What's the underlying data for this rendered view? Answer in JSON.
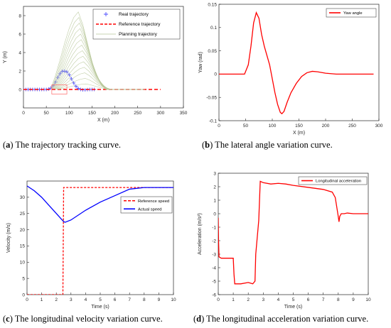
{
  "captions": [
    {
      "prefix": "(",
      "letter": "a",
      "text": ") The trajectory tracking curve."
    },
    {
      "prefix": "(",
      "letter": "b",
      "text": ") The lateral angle variation curve."
    },
    {
      "prefix": "(",
      "letter": "c",
      "text": ") The longitudinal velocity variation curve."
    },
    {
      "prefix": "(",
      "letter": "d",
      "text": ") The longitudinal acceleration variation curve."
    }
  ],
  "chart_data": [
    {
      "type": "line",
      "xlabel": "X (m)",
      "ylabel": "Y (m)",
      "xlim": [
        0,
        350
      ],
      "ylim": [
        -2,
        9
      ],
      "xticks": [
        0,
        50,
        100,
        150,
        200,
        250,
        300,
        350
      ],
      "yticks": [
        0,
        2,
        4,
        6,
        8
      ],
      "legend_position": "top-right",
      "series": [
        {
          "name": "Real trajectory",
          "style": "marker-plus",
          "color": "#4a4aff",
          "x": [
            0,
            5,
            10,
            15,
            20,
            25,
            30,
            35,
            40,
            45,
            50,
            55,
            60,
            65,
            70,
            75,
            80,
            85,
            90,
            95,
            100,
            105,
            110,
            115,
            120,
            125,
            130,
            135,
            140,
            145,
            150,
            155
          ],
          "y": [
            0,
            0,
            0,
            0,
            0,
            0,
            0,
            0,
            0,
            0,
            0,
            0.05,
            0.15,
            0.4,
            0.8,
            1.3,
            1.7,
            1.95,
            2.0,
            1.9,
            1.6,
            1.15,
            0.7,
            0.35,
            0.1,
            0,
            -0.05,
            -0.05,
            -0.02,
            0,
            0,
            0
          ]
        },
        {
          "name": "Reference trajectory",
          "style": "dashed",
          "color": "#ff0000",
          "x": [
            0,
            60,
            60,
            120,
            120,
            300
          ],
          "y": [
            0,
            0,
            0,
            0,
            0,
            0
          ]
        },
        {
          "name": "Planning trajectory",
          "style": "thin-fan",
          "color": "#b8c89a",
          "x": [
            60,
            70,
            80,
            90,
            100,
            110,
            120,
            130,
            140,
            150,
            160,
            170,
            180,
            190,
            200,
            210,
            220,
            230,
            240,
            250
          ],
          "y": [
            0.1,
            1.5,
            3.2,
            5.0,
            6.6,
            7.8,
            8.4,
            7.0,
            5.0,
            3.0,
            1.5,
            0.5,
            0,
            0,
            0,
            0,
            0,
            0,
            0,
            0
          ]
        }
      ],
      "annotations": [
        {
          "type": "box",
          "x": [
            62,
            95
          ],
          "y": [
            -0.5,
            0.5
          ],
          "color": "#ff6666"
        }
      ]
    },
    {
      "type": "line",
      "xlabel": "X (m)",
      "ylabel": "Yaw (rad)",
      "xlim": [
        0,
        300
      ],
      "ylim": [
        -0.1,
        0.15
      ],
      "xticks": [
        0,
        50,
        100,
        150,
        200,
        250,
        300
      ],
      "yticks": [
        -0.1,
        -0.05,
        0,
        0.05,
        0.1,
        0.15
      ],
      "legend_position": "top-right",
      "series": [
        {
          "name": "Yaw angle",
          "color": "#ff0000",
          "x": [
            0,
            40,
            48,
            55,
            60,
            65,
            70,
            75,
            80,
            85,
            90,
            95,
            100,
            105,
            110,
            115,
            118,
            122,
            128,
            135,
            145,
            155,
            165,
            175,
            185,
            200,
            220,
            250,
            290
          ],
          "y": [
            0,
            0,
            0,
            0.02,
            0.06,
            0.11,
            0.132,
            0.12,
            0.085,
            0.06,
            0.04,
            0.02,
            -0.01,
            -0.04,
            -0.065,
            -0.082,
            -0.085,
            -0.08,
            -0.06,
            -0.04,
            -0.02,
            -0.005,
            0.003,
            0.006,
            0.005,
            0.002,
            0,
            0,
            0
          ]
        }
      ]
    },
    {
      "type": "line",
      "xlabel": "Time (s)",
      "ylabel": "Velocity (m/s)",
      "xlim": [
        0,
        10
      ],
      "ylim": [
        0,
        35
      ],
      "xticks": [
        0,
        1,
        2,
        3,
        4,
        5,
        6,
        7,
        8,
        9,
        10
      ],
      "yticks": [
        0,
        5,
        10,
        15,
        20,
        25,
        30
      ],
      "legend_position": "middle-right",
      "series": [
        {
          "name": "Reference speed",
          "style": "dashed",
          "color": "#ff0000",
          "x": [
            0,
            2.45,
            2.5,
            10
          ],
          "y": [
            0,
            0,
            33,
            33
          ]
        },
        {
          "name": "Actual speed",
          "color": "#0000ff",
          "x": [
            0,
            0.5,
            1,
            1.5,
            2,
            2.3,
            2.5,
            2.6,
            3,
            4,
            5,
            6,
            7,
            8,
            9,
            10
          ],
          "y": [
            33.5,
            32,
            30,
            27.5,
            25,
            23.5,
            22.5,
            22.3,
            23,
            26,
            28.5,
            30.5,
            32.5,
            33,
            33,
            33
          ]
        }
      ]
    },
    {
      "type": "line",
      "xlabel": "Time (s)",
      "ylabel": "Acceleration (m/s²)",
      "xlim": [
        0,
        10
      ],
      "ylim": [
        -6,
        3
      ],
      "xticks": [
        0,
        1,
        2,
        3,
        4,
        5,
        6,
        7,
        8,
        9,
        10
      ],
      "yticks": [
        -6,
        -5,
        -4,
        -3,
        -2,
        -1,
        0,
        1,
        2,
        3
      ],
      "legend_position": "top-right",
      "series": [
        {
          "name": "Longitudinal acceleration",
          "color": "#ff0000",
          "x": [
            0,
            0.02,
            0.05,
            0.2,
            0.5,
            1.0,
            1.05,
            1.1,
            1.5,
            2.0,
            2.3,
            2.45,
            2.5,
            2.7,
            2.8,
            3.0,
            3.5,
            4.0,
            4.5,
            5.0,
            6.0,
            7.0,
            7.6,
            7.8,
            8.0,
            8.05,
            8.1,
            8.2,
            8.4,
            8.6,
            9.0,
            10.0
          ],
          "y": [
            -0.3,
            -2.0,
            -3.2,
            -3.3,
            -3.3,
            -3.3,
            -4.5,
            -5.2,
            -5.2,
            -5.1,
            -5.2,
            -5.0,
            -3.0,
            -0.5,
            2.4,
            2.3,
            2.2,
            2.25,
            2.2,
            2.1,
            1.95,
            1.8,
            1.6,
            1.2,
            -0.2,
            -0.6,
            -0.2,
            0.0,
            0.0,
            0.05,
            0.0,
            0.0
          ]
        }
      ]
    }
  ]
}
